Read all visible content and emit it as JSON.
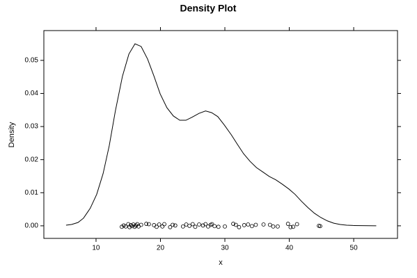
{
  "chart_data": {
    "type": "density",
    "title": "Density Plot",
    "xlabel": "x",
    "ylabel": "Density",
    "xlim": [
      1.9,
      56.8
    ],
    "ylim": [
      -0.0038,
      0.059
    ],
    "xticks": [
      10,
      20,
      30,
      40,
      50
    ],
    "yticks": [
      {
        "value": 0,
        "label": "0.00"
      },
      0.01,
      0.02,
      0.03,
      0.04,
      0.05
    ],
    "color": "#000000",
    "curve": {
      "x": [
        5.35,
        6.2,
        7.2,
        8.05,
        9.1,
        10.1,
        11.1,
        12.05,
        13.0,
        14.1,
        15.1,
        16.05,
        17.0,
        18.0,
        19.0,
        19.95,
        21.0,
        22.0,
        23.0,
        23.95,
        24.9,
        26.0,
        27.0,
        27.95,
        28.9,
        29.9,
        31.0,
        31.95,
        32.9,
        33.9,
        34.9,
        35.95,
        36.9,
        37.9,
        38.9,
        39.95,
        40.9,
        41.9,
        42.9,
        43.9,
        44.9,
        45.9,
        46.9,
        47.9,
        48.9,
        49.9,
        53.5
      ],
      "y": [
        0.0002,
        0.0004,
        0.001,
        0.0023,
        0.0053,
        0.0095,
        0.0158,
        0.0242,
        0.0347,
        0.0452,
        0.0519,
        0.055,
        0.0542,
        0.0504,
        0.0452,
        0.0399,
        0.0357,
        0.0332,
        0.0319,
        0.0319,
        0.0328,
        0.034,
        0.0347,
        0.0342,
        0.033,
        0.0305,
        0.0275,
        0.0246,
        0.0218,
        0.0195,
        0.0176,
        0.0162,
        0.0149,
        0.0139,
        0.0126,
        0.0111,
        0.0095,
        0.0074,
        0.0055,
        0.0038,
        0.0025,
        0.0015,
        0.0008,
        0.0004,
        0.0002,
        0.0001,
        0.0
      ]
    },
    "points": {
      "x": [
        14.0,
        14.3,
        14.6,
        15.0,
        15.2,
        15.4,
        15.6,
        15.8,
        16.0,
        16.2,
        16.4,
        16.6,
        17.0,
        17.8,
        18.2,
        19.0,
        19.4,
        19.8,
        20.3,
        20.6,
        21.5,
        21.9,
        22.3,
        23.5,
        24.0,
        24.5,
        25.0,
        25.4,
        26.0,
        26.6,
        27.0,
        27.4,
        27.8,
        28.0,
        28.4,
        29.0,
        30.0,
        31.3,
        31.7,
        32.2,
        33.0,
        33.6,
        34.2,
        34.8,
        36.0,
        37.0,
        37.5,
        38.2,
        39.8,
        40.2,
        40.6,
        41.2,
        44.6,
        44.8
      ],
      "y": [
        -0.0003,
        0.0001,
        -0.0002,
        0.0005,
        -0.0004,
        0.0002,
        -0.0001,
        0.0004,
        -0.0003,
        0.0001,
        0.0005,
        -0.0002,
        0.0003,
        0.0006,
        0.0005,
        0.0002,
        -0.0003,
        0.0004,
        -0.0002,
        0.0005,
        -0.0004,
        0.0003,
        0.0001,
        -0.0002,
        0.0004,
        0.0,
        0.0005,
        -0.0003,
        0.0004,
        0.0001,
        0.0005,
        -0.0002,
        0.0003,
        0.0005,
        -0.0001,
        -0.0003,
        -0.0002,
        0.0006,
        0.0003,
        -0.0004,
        0.0002,
        0.0004,
        -0.0001,
        0.0003,
        0.0004,
        0.0003,
        -0.0002,
        -0.0002,
        0.0006,
        -0.0004,
        -0.0003,
        0.0005,
        0.0,
        -0.0001
      ]
    }
  }
}
